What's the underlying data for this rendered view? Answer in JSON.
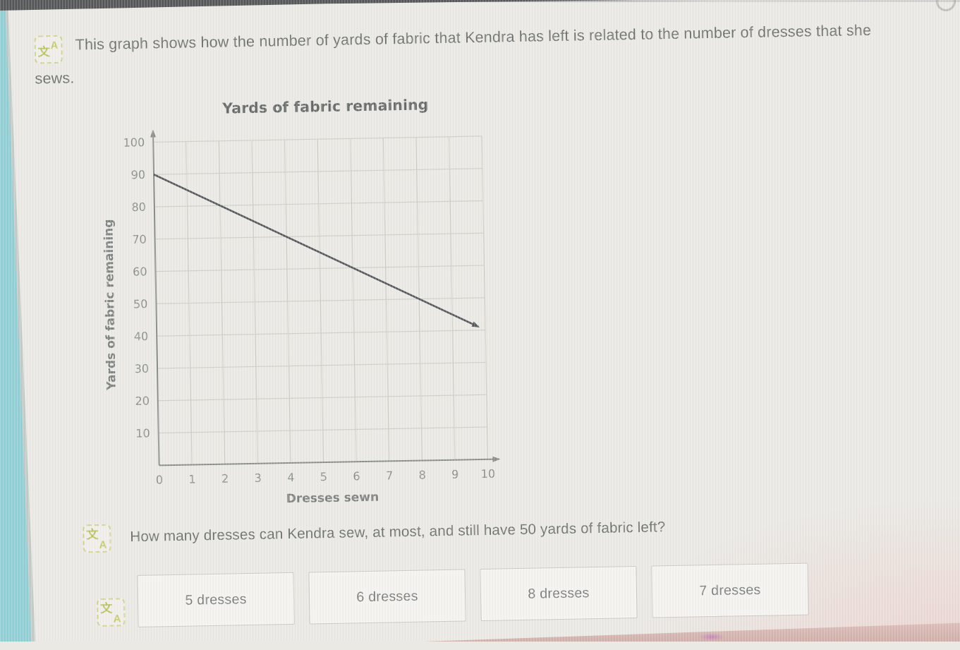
{
  "page": {
    "background": "#eae9e4",
    "accent_strip_color": "#8ecfd5",
    "top_bar_color": "#545557",
    "pink_band_color": "#cfa9a3"
  },
  "prompt": {
    "icon": "translate-icon",
    "icon_glyphs": {
      "zh": "文",
      "en": "A"
    },
    "text": "This graph shows how the number of yards of fabric that Kendra has left is related to the number of dresses that she sews."
  },
  "chart_data": {
    "type": "line",
    "title": "Yards of fabric remaining",
    "xlabel": "Dresses sewn",
    "ylabel": "Yards of fabric remaining",
    "xlim": [
      0,
      10
    ],
    "ylim": [
      0,
      100
    ],
    "xticks": [
      0,
      1,
      2,
      3,
      4,
      5,
      6,
      7,
      8,
      9,
      10
    ],
    "yticks": [
      10,
      20,
      30,
      40,
      50,
      60,
      70,
      80,
      90,
      100
    ],
    "grid": true,
    "legend": false,
    "series": [
      {
        "name": "yards of fabric remaining",
        "points": [
          [
            0,
            90
          ],
          [
            10,
            40
          ]
        ],
        "arrow_end": true,
        "color": "#54575a"
      }
    ],
    "colors": {
      "grid": "#ccd0c6",
      "axis": "#888c89",
      "tick_label": "#8b8f8c",
      "title": "#666a67",
      "axis_label": "#7d817e"
    }
  },
  "question": {
    "icon": "translate-icon",
    "text": "How many dresses can Kendra sew, at most, and still have 50 yards of fabric left?"
  },
  "answers": [
    {
      "label": "5 dresses"
    },
    {
      "label": "6 dresses"
    },
    {
      "label": "8 dresses"
    },
    {
      "label": "7 dresses"
    }
  ]
}
